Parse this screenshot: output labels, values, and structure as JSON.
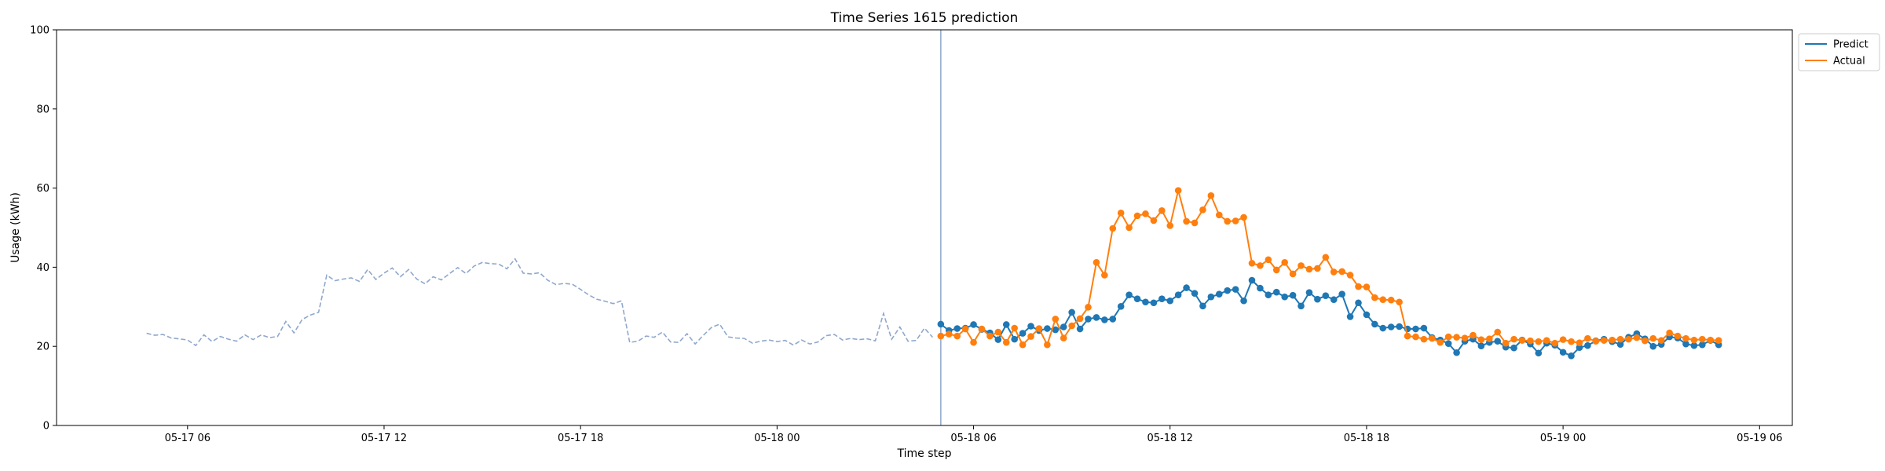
{
  "chart_data": {
    "type": "line",
    "title": "Time Series 1615 prediction",
    "xlabel": "Time step",
    "ylabel": "Usage (kWh)",
    "ylim": [
      0,
      100
    ],
    "yticks": [
      0,
      20,
      40,
      60,
      80,
      100
    ],
    "xlim": [
      "2025-05-17T02:00",
      "2025-05-19T07:00"
    ],
    "xticks": [
      {
        "t": "2025-05-17T06:00",
        "label": "05-17 06"
      },
      {
        "t": "2025-05-17T12:00",
        "label": "05-17 12"
      },
      {
        "t": "2025-05-17T18:00",
        "label": "05-17 18"
      },
      {
        "t": "2025-05-18T00:00",
        "label": "05-18 00"
      },
      {
        "t": "2025-05-18T06:00",
        "label": "05-18 06"
      },
      {
        "t": "2025-05-18T12:00",
        "label": "05-18 12"
      },
      {
        "t": "2025-05-18T18:00",
        "label": "05-18 18"
      },
      {
        "t": "2025-05-19T00:00",
        "label": "05-19 00"
      },
      {
        "t": "2025-05-19T06:00",
        "label": "05-19 06"
      }
    ],
    "split_time": "2025-05-18T05:00",
    "legend": {
      "placement": "top-right",
      "entries": [
        "Predict",
        "Actual"
      ]
    },
    "colors": {
      "history": "#8fa8cc",
      "predict": "#1f77b4",
      "actual": "#ff7f0e",
      "split_line": "#8fa8cc"
    },
    "history": {
      "start": "2025-05-17T04:45",
      "interval_minutes": 15,
      "values": [
        23.3,
        22.8,
        23.0,
        22.1,
        21.9,
        21.6,
        20.2,
        22.9,
        21.2,
        22.5,
        21.8,
        21.3,
        22.9,
        21.7,
        22.9,
        22.2,
        22.5,
        26.3,
        23.4,
        26.8,
        27.9,
        28.6,
        38.0,
        36.6,
        37.0,
        37.3,
        36.4,
        39.4,
        36.9,
        38.5,
        39.8,
        37.6,
        39.4,
        37.0,
        35.8,
        37.6,
        36.8,
        38.4,
        39.9,
        38.4,
        40.3,
        41.2,
        40.9,
        40.8,
        39.6,
        42.1,
        38.5,
        38.3,
        38.6,
        36.7,
        35.6,
        35.9,
        35.7,
        34.4,
        33.0,
        31.9,
        31.4,
        30.8,
        31.5,
        21.0,
        21.3,
        22.6,
        22.3,
        23.6,
        21.1,
        21.0,
        23.2,
        20.6,
        22.8,
        24.8,
        25.6,
        22.4,
        22.1,
        22.0,
        20.8,
        21.3,
        21.6,
        21.2,
        21.5,
        20.3,
        21.6,
        20.6,
        21.1,
        22.7,
        23.0,
        21.6,
        22.0,
        21.7,
        21.9,
        21.4,
        28.3,
        21.8,
        24.9,
        21.3,
        21.5,
        24.6,
        22.3
      ]
    },
    "series": [
      {
        "name": "Predict",
        "start": "2025-05-18T05:00",
        "interval_minutes": 15,
        "values": [
          25.6,
          24.0,
          24.5,
          24.6,
          25.5,
          24.3,
          23.4,
          21.7,
          25.5,
          21.8,
          23.3,
          25.1,
          24.0,
          24.5,
          24.2,
          24.9,
          28.6,
          24.4,
          26.9,
          27.3,
          26.7,
          26.9,
          30.1,
          33.0,
          32.0,
          31.2,
          31.0,
          32.0,
          31.5,
          33.0,
          34.8,
          33.4,
          30.2,
          32.5,
          33.2,
          34.1,
          34.4,
          31.5,
          36.7,
          34.7,
          33.0,
          33.7,
          32.5,
          32.9,
          30.2,
          33.6,
          31.9,
          32.8,
          31.8,
          33.2,
          27.5,
          31.0,
          28.0,
          25.6,
          24.6,
          24.9,
          25.0,
          24.4,
          24.4,
          24.6,
          22.2,
          21.6,
          20.7,
          18.4,
          21.3,
          21.8,
          20.1,
          21.0,
          21.3,
          19.8,
          19.6,
          21.6,
          20.6,
          18.3,
          20.8,
          20.3,
          18.5,
          17.6,
          19.7,
          20.2,
          21.4,
          21.8,
          21.2,
          20.5,
          22.3,
          23.2,
          21.9,
          20.0,
          20.5,
          22.4,
          22.1,
          20.6,
          20.2,
          20.4,
          21.5,
          20.4
        ]
      },
      {
        "name": "Actual",
        "start": "2025-05-18T05:00",
        "interval_minutes": 15,
        "values": [
          22.6,
          23.1,
          22.6,
          24.4,
          21.0,
          24.4,
          22.6,
          23.6,
          21.0,
          24.6,
          20.4,
          22.5,
          24.5,
          20.4,
          26.9,
          22.1,
          25.2,
          27.0,
          29.9,
          41.2,
          38.0,
          49.8,
          53.7,
          50.0,
          53.0,
          53.5,
          51.8,
          54.3,
          50.5,
          59.4,
          51.6,
          51.2,
          54.5,
          58.1,
          53.2,
          51.6,
          51.7,
          52.6,
          41.0,
          40.4,
          41.9,
          39.3,
          41.2,
          38.3,
          40.4,
          39.5,
          39.7,
          42.5,
          38.8,
          38.9,
          38.0,
          35.1,
          35.0,
          32.3,
          31.8,
          31.7,
          31.2,
          22.6,
          22.4,
          21.8,
          22.0,
          21.0,
          22.4,
          22.3,
          22.1,
          22.8,
          21.7,
          21.9,
          23.6,
          20.8,
          21.8,
          21.5,
          21.4,
          21.2,
          21.5,
          20.8,
          21.7,
          21.2,
          20.9,
          22.0,
          21.3,
          21.5,
          21.6,
          21.8,
          21.8,
          22.2,
          21.4,
          22.0,
          21.5,
          23.4,
          22.6,
          22.0,
          21.6,
          21.8,
          21.6,
          21.5
        ]
      }
    ]
  }
}
